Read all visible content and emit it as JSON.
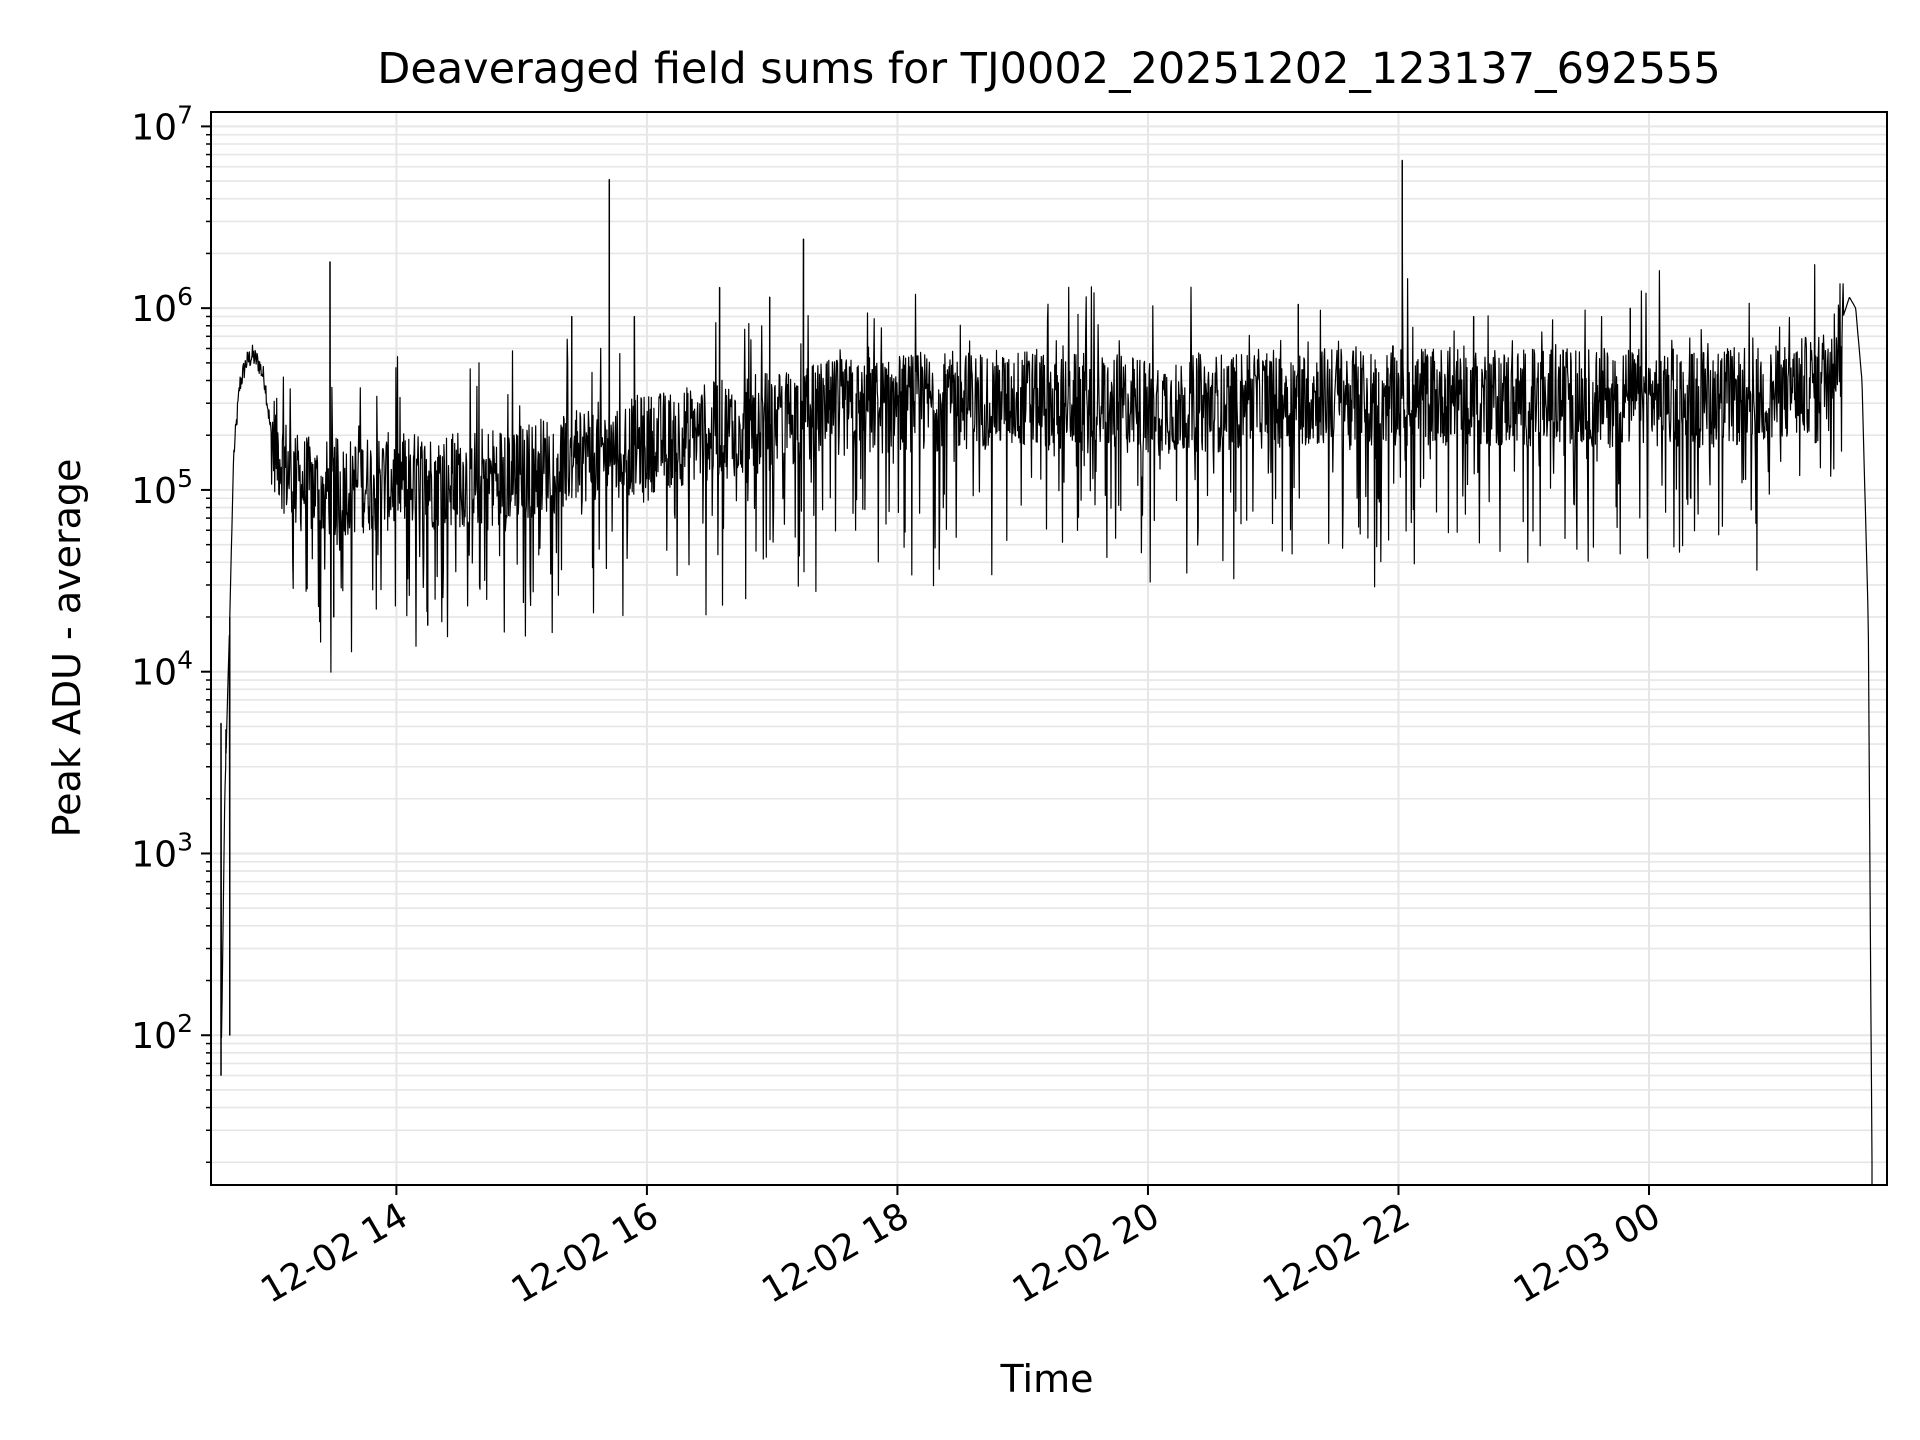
{
  "chart_data": {
    "type": "line",
    "title": "Deaveraged field sums for TJ0002_20251202_123137_692555",
    "xlabel": "Time",
    "ylabel": "Peak ADU - average",
    "yscale": "log",
    "ylim": [
      15,
      12000000
    ],
    "xlim_hours": [
      12.52,
      25.9
    ],
    "grid": true,
    "legend": "none",
    "line_color": "#000000",
    "grid_color": "#e6e6e6",
    "x_ticks": [
      {
        "label": "12-02 14",
        "hour": 14
      },
      {
        "label": "12-02 16",
        "hour": 16
      },
      {
        "label": "12-02 18",
        "hour": 18
      },
      {
        "label": "12-02 20",
        "hour": 20
      },
      {
        "label": "12-02 22",
        "hour": 22
      },
      {
        "label": "12-03 00",
        "hour": 24
      }
    ],
    "y_ticks": [
      {
        "base": "10",
        "exp": "2",
        "value": 100
      },
      {
        "base": "10",
        "exp": "3",
        "value": 1000
      },
      {
        "base": "10",
        "exp": "4",
        "value": 10000
      },
      {
        "base": "10",
        "exp": "5",
        "value": 100000
      },
      {
        "base": "10",
        "exp": "6",
        "value": 1000000
      },
      {
        "base": "10",
        "exp": "7",
        "value": 10000000
      }
    ],
    "series": [
      {
        "name": "Deaveraged field sum",
        "baseline": {
          "hours": [
            12.6,
            12.63,
            12.67,
            12.7,
            12.75,
            12.8,
            12.85,
            12.9,
            12.95,
            13.0,
            13.1,
            13.2,
            13.4,
            13.6,
            13.8,
            14.0,
            14.5,
            15.0,
            15.5,
            16.0,
            16.5,
            17.0,
            17.5,
            18.0,
            18.5,
            19.0,
            19.5,
            20.0,
            20.5,
            21.0,
            21.5,
            22.0,
            22.5,
            23.0,
            23.5,
            24.0,
            24.5,
            25.0,
            25.2,
            25.4,
            25.5,
            25.55,
            25.6,
            25.65,
            25.7,
            25.75,
            25.78
          ],
          "values": [
            60,
            2000,
            20000,
            150000,
            380000,
            500000,
            550000,
            500000,
            400000,
            200000,
            140000,
            110000,
            100000,
            105000,
            110000,
            110000,
            115000,
            125000,
            160000,
            180000,
            210000,
            240000,
            280000,
            300000,
            310000,
            320000,
            300000,
            290000,
            300000,
            320000,
            330000,
            330000,
            330000,
            320000,
            320000,
            320000,
            320000,
            330000,
            360000,
            420000,
            600000,
            900000,
            1150000,
            1000000,
            400000,
            20000,
            20
          ]
        },
        "spikes": [
          {
            "hour": 12.6,
            "value": 5200
          },
          {
            "hour": 12.64,
            "value": 4800
          },
          {
            "hour": 12.67,
            "value": 100
          },
          {
            "hour": 13.47,
            "value": 1800000
          },
          {
            "hour": 15.7,
            "value": 5100000
          },
          {
            "hour": 15.4,
            "value": 900000
          },
          {
            "hour": 15.9,
            "value": 900000
          },
          {
            "hour": 16.58,
            "value": 1300000
          },
          {
            "hour": 16.98,
            "value": 1150000
          },
          {
            "hour": 17.25,
            "value": 2400000
          },
          {
            "hour": 21.2,
            "value": 1050000
          },
          {
            "hour": 22.03,
            "value": 6500000
          },
          {
            "hour": 22.6,
            "value": 900000
          },
          {
            "hour": 23.85,
            "value": 1000000
          },
          {
            "hour": 14.25,
            "value": 18000
          },
          {
            "hour": 13.5,
            "value": 20000
          }
        ]
      }
    ]
  }
}
